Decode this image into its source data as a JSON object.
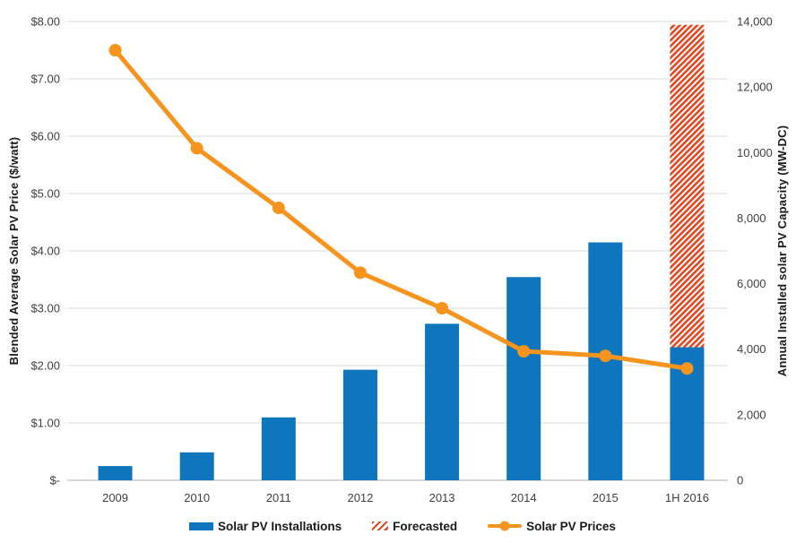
{
  "colors": {
    "bar_blue": "#0F75BC",
    "line_orange": "#F7941E",
    "forecast_red": "#E04B26",
    "gridline": "#D9D9D9",
    "axis_line": "#BFBFBF",
    "tick_text": "#404040",
    "title_text": "#1A1A1A"
  },
  "chart_data": {
    "type": "bar",
    "subtype": "combo-bar-line-dual-axis",
    "title": "",
    "categories": [
      "2009",
      "2010",
      "2011",
      "2012",
      "2013",
      "2014",
      "2015",
      "1H 2016"
    ],
    "series": [
      {
        "name": "Solar PV Installations",
        "type": "bar",
        "axis": "right",
        "values": [
          435,
          852,
          1919,
          3373,
          4776,
          6201,
          7260,
          4060
        ]
      },
      {
        "name": "Forecasted",
        "type": "bar",
        "axis": "right",
        "style": "diagonal-hatch",
        "category": "1H 2016",
        "from": 4060,
        "to": 13900
      },
      {
        "name": "Solar PV Prices",
        "type": "line",
        "axis": "left",
        "values": [
          7.5,
          5.79,
          4.75,
          3.62,
          3.0,
          2.25,
          2.17,
          1.95
        ]
      }
    ],
    "left_axis": {
      "title": "Blended Average Solar PV Price ($/watt)",
      "min": 0,
      "max": 8,
      "step": 1,
      "tick_labels": [
        "$-",
        "$1.00",
        "$2.00",
        "$3.00",
        "$4.00",
        "$5.00",
        "$6.00",
        "$7.00",
        "$8.00"
      ]
    },
    "right_axis": {
      "title": "Annual Installed solar PV Capacity (MW-DC)",
      "min": 0,
      "max": 14000,
      "step": 2000,
      "tick_labels": [
        "0",
        "2,000",
        "4,000",
        "6,000",
        "8,000",
        "10,000",
        "12,000",
        "14,000"
      ]
    },
    "grid": "horizontal-on-left-axis-intervals",
    "legend_position": "bottom"
  }
}
